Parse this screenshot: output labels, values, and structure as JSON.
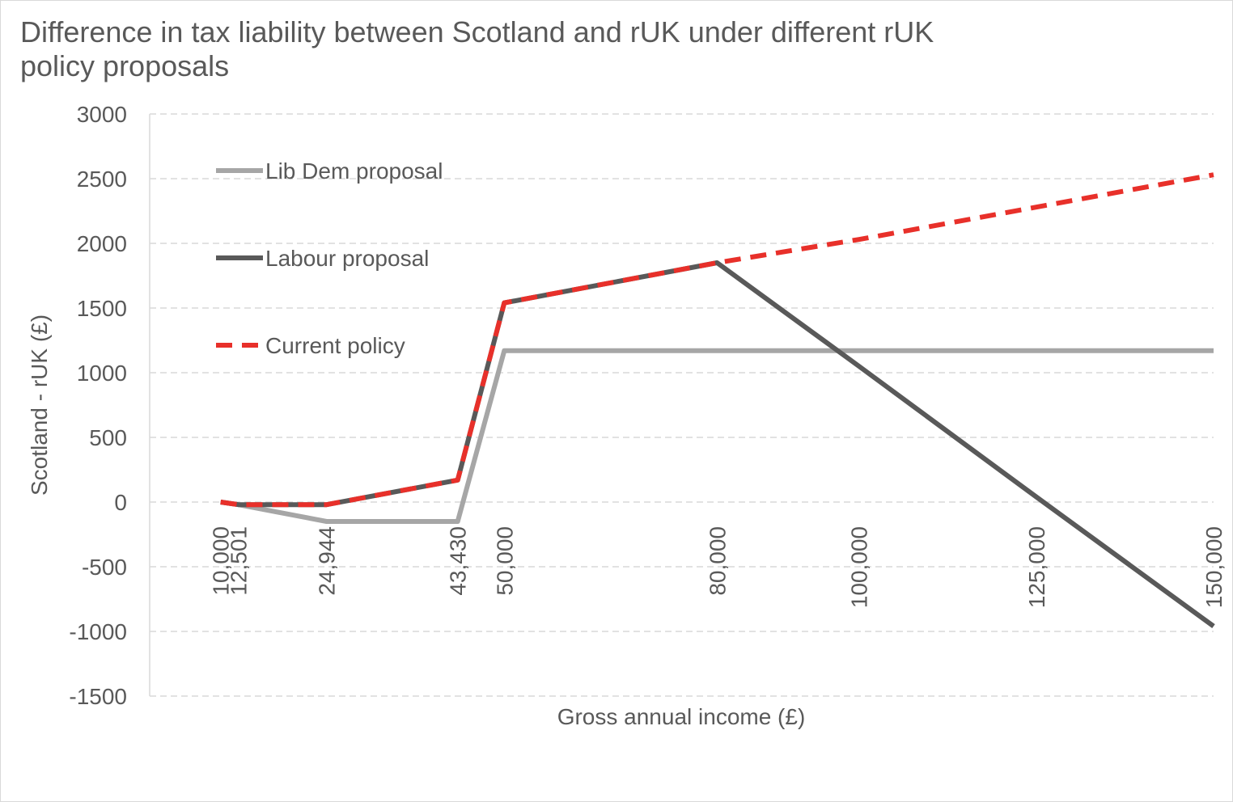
{
  "chart_data": {
    "type": "line",
    "title": "Difference in tax liability between Scotland and rUK under different rUK policy proposals",
    "xlabel": "Gross annual income (£)",
    "ylabel": "Scotland - rUK (£)",
    "x": [
      10000,
      12501,
      24944,
      43430,
      50000,
      80000,
      100000,
      125000,
      150000
    ],
    "x_tick_labels": [
      "10,000",
      "12,501",
      "24,944",
      "43,430",
      "50,000",
      "80,000",
      "100,000",
      "125,000",
      "150,000"
    ],
    "ylim": [
      -1500,
      3000
    ],
    "y_ticks": [
      3000,
      2500,
      2000,
      1500,
      1000,
      500,
      0,
      -500,
      -1000,
      -1500
    ],
    "grid": true,
    "legend_position": "top-left",
    "series": [
      {
        "name": "Lib Dem proposal",
        "color": "#a6a6a6",
        "style": "solid",
        "values": [
          0,
          -20,
          -150,
          -150,
          1170,
          1170,
          1170,
          1170,
          1170
        ]
      },
      {
        "name": "Labour proposal",
        "color": "#595959",
        "style": "solid",
        "values": [
          0,
          -20,
          -20,
          170,
          1540,
          1850,
          1050,
          40,
          -960
        ]
      },
      {
        "name": "Current policy",
        "color": "#e8302a",
        "style": "dashed",
        "values": [
          0,
          -20,
          -20,
          170,
          1540,
          1850,
          2030,
          2280,
          2530
        ]
      }
    ]
  }
}
